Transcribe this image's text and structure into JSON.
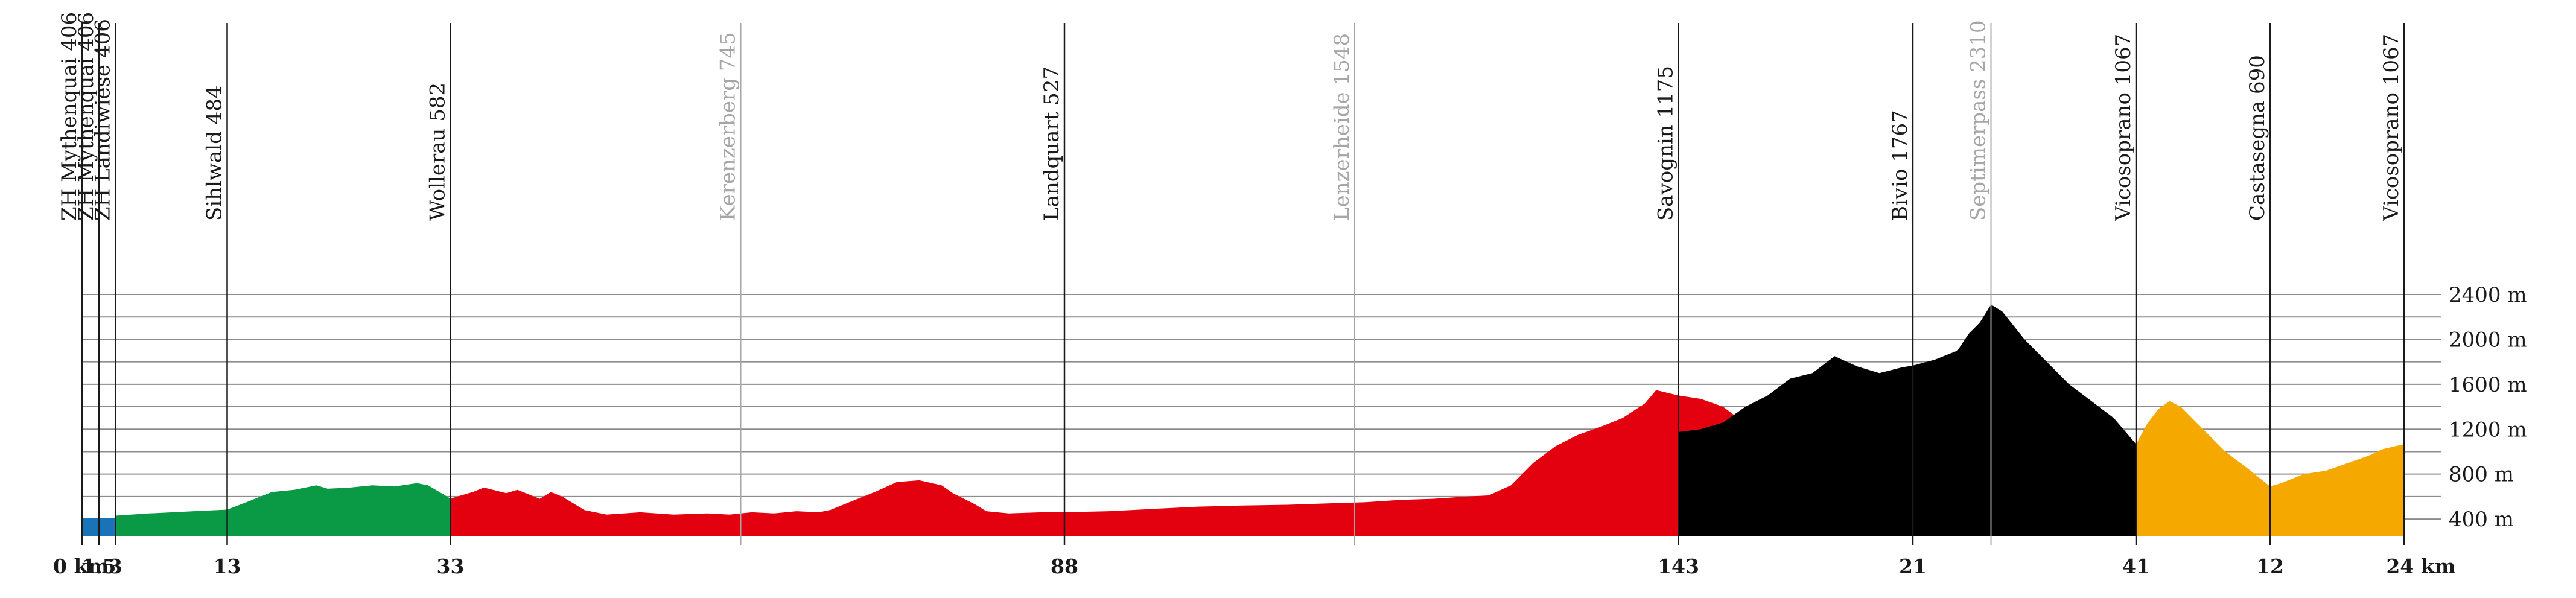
{
  "chart_data": {
    "type": "area",
    "title": "",
    "xlabel": "",
    "ylabel": "",
    "ylim": [
      250,
      2500
    ],
    "y_ticks": [
      {
        "value": 400,
        "label": "400 m"
      },
      {
        "value": 800,
        "label": "800 m"
      },
      {
        "value": 1200,
        "label": "1200 m"
      },
      {
        "value": 1600,
        "label": "1600 m"
      },
      {
        "value": 2000,
        "label": "2000 m"
      },
      {
        "value": 2400,
        "label": "2400 m"
      }
    ],
    "grid_values": [
      400,
      600,
      800,
      1000,
      1200,
      1400,
      1600,
      1800,
      2000,
      2200,
      2400
    ],
    "total_distance_km": 339,
    "x_ticks": [
      {
        "km": 0,
        "label": "0 km"
      },
      {
        "km": 1.5,
        "label": "1.5"
      },
      {
        "km": 3,
        "label": "3"
      },
      {
        "km": 13,
        "label": "13"
      },
      {
        "km": 33,
        "label": "33"
      },
      {
        "km": 88,
        "label": "88"
      },
      {
        "km": 143,
        "label": "143"
      },
      {
        "km": 164,
        "label": "21"
      },
      {
        "km": 184,
        "label": "41"
      },
      {
        "km": 196,
        "label": "12"
      },
      {
        "km": 208,
        "label": "24 km"
      }
    ],
    "waypoints": [
      {
        "km": 0,
        "label": "ZH Mythenquai 406",
        "muted": false
      },
      {
        "km": 1.5,
        "label": "ZH Mythenquai 406",
        "muted": false
      },
      {
        "km": 3,
        "label": "ZH Landiwiese 406",
        "muted": false
      },
      {
        "km": 13,
        "label": "Sihlwald 484",
        "muted": false
      },
      {
        "km": 33,
        "label": "Wollerau 582",
        "muted": false
      },
      {
        "km": 59,
        "label": "Kerenzerberg 745",
        "muted": true
      },
      {
        "km": 88,
        "label": "Landquart 527",
        "muted": false
      },
      {
        "km": 114,
        "label": "Lenzerheide 1548",
        "muted": true
      },
      {
        "km": 143,
        "label": "Savognin 1175",
        "muted": false
      },
      {
        "km": 164,
        "label": "Bivio 1767",
        "muted": false
      },
      {
        "km": 171,
        "label": "Septimerpass 2310",
        "muted": true
      },
      {
        "km": 184,
        "label": "Vicosoprano 1067",
        "muted": false
      },
      {
        "km": 196,
        "label": "Castasegna 690",
        "muted": false
      },
      {
        "km": 208,
        "label": "Vicosoprano 1067",
        "muted": false
      }
    ],
    "series": [
      {
        "color": "#1a73b8",
        "points": [
          [
            0,
            406
          ],
          [
            1.5,
            406
          ],
          [
            3,
            406
          ]
        ]
      },
      {
        "color": "#0a9a46",
        "points": [
          [
            3,
            430
          ],
          [
            6,
            450
          ],
          [
            10,
            470
          ],
          [
            13,
            484
          ],
          [
            15,
            560
          ],
          [
            17,
            640
          ],
          [
            19,
            660
          ],
          [
            21,
            700
          ],
          [
            22,
            670
          ],
          [
            24,
            680
          ],
          [
            26,
            700
          ],
          [
            28,
            690
          ],
          [
            30,
            720
          ],
          [
            31,
            700
          ],
          [
            33,
            582
          ]
        ]
      },
      {
        "color": "#e3000f",
        "points": [
          [
            33,
            582
          ],
          [
            35,
            640
          ],
          [
            36,
            680
          ],
          [
            38,
            630
          ],
          [
            39,
            660
          ],
          [
            41,
            580
          ],
          [
            42,
            640
          ],
          [
            43,
            600
          ],
          [
            45,
            480
          ],
          [
            47,
            440
          ],
          [
            50,
            460
          ],
          [
            53,
            440
          ],
          [
            56,
            450
          ],
          [
            58,
            440
          ],
          [
            60,
            460
          ],
          [
            62,
            450
          ],
          [
            64,
            470
          ],
          [
            66,
            460
          ],
          [
            67,
            480
          ],
          [
            69,
            560
          ],
          [
            71,
            640
          ],
          [
            73,
            730
          ],
          [
            75,
            745
          ],
          [
            77,
            700
          ],
          [
            78,
            630
          ],
          [
            80,
            530
          ],
          [
            81,
            470
          ],
          [
            83,
            450
          ],
          [
            86,
            460
          ],
          [
            88,
            460
          ],
          [
            92,
            470
          ],
          [
            96,
            490
          ],
          [
            100,
            510
          ],
          [
            104,
            520
          ],
          [
            108,
            527
          ],
          [
            112,
            540
          ],
          [
            115,
            550
          ],
          [
            118,
            570
          ],
          [
            121,
            580
          ],
          [
            124,
            600
          ],
          [
            126,
            610
          ],
          [
            128,
            700
          ],
          [
            130,
            900
          ],
          [
            132,
            1050
          ],
          [
            134,
            1150
          ],
          [
            136,
            1220
          ],
          [
            138,
            1300
          ],
          [
            140,
            1430
          ],
          [
            141,
            1548
          ],
          [
            143,
            1500
          ],
          [
            145,
            1470
          ],
          [
            147,
            1400
          ],
          [
            149,
            1250
          ],
          [
            151,
            1050
          ],
          [
            152,
            900
          ],
          [
            153,
            960
          ],
          [
            154,
            1020
          ],
          [
            156,
            900
          ],
          [
            157,
            960
          ],
          [
            159,
            1150
          ],
          [
            161,
            1270
          ],
          [
            162,
            1340
          ],
          [
            164,
            1260
          ],
          [
            165,
            1180
          ],
          [
            166,
            1200
          ],
          [
            167,
            1290
          ],
          [
            168,
            1270
          ],
          [
            169,
            1200
          ],
          [
            143,
            1175
          ]
        ]
      },
      {
        "color": "#000000",
        "points": [
          [
            143,
            1175
          ],
          [
            145,
            1200
          ],
          [
            147,
            1260
          ],
          [
            149,
            1400
          ],
          [
            151,
            1500
          ],
          [
            153,
            1650
          ],
          [
            155,
            1700
          ],
          [
            157,
            1850
          ],
          [
            159,
            1760
          ],
          [
            161,
            1700
          ],
          [
            163,
            1750
          ],
          [
            164,
            1767
          ],
          [
            166,
            1820
          ],
          [
            168,
            1900
          ],
          [
            169,
            2050
          ],
          [
            170,
            2150
          ],
          [
            171,
            2310
          ],
          [
            172,
            2250
          ],
          [
            174,
            2000
          ],
          [
            176,
            1800
          ],
          [
            178,
            1600
          ],
          [
            180,
            1450
          ],
          [
            182,
            1300
          ],
          [
            184,
            1067
          ]
        ]
      },
      {
        "color": "#f5a800",
        "points": [
          [
            184,
            1067
          ],
          [
            185,
            1250
          ],
          [
            186,
            1380
          ],
          [
            187,
            1450
          ],
          [
            188,
            1400
          ],
          [
            189,
            1300
          ],
          [
            190,
            1200
          ],
          [
            192,
            1000
          ],
          [
            194,
            850
          ],
          [
            196,
            690
          ],
          [
            197,
            720
          ],
          [
            199,
            800
          ],
          [
            201,
            830
          ],
          [
            203,
            900
          ],
          [
            205,
            970
          ],
          [
            206,
            1020
          ],
          [
            208,
            1067
          ]
        ]
      }
    ]
  }
}
